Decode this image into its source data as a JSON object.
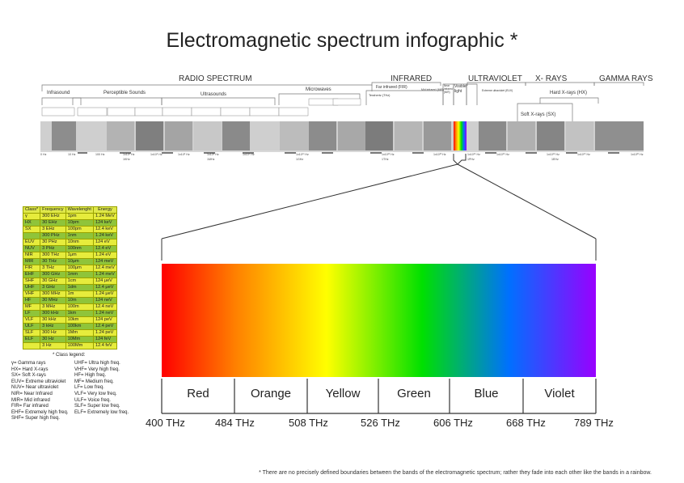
{
  "title": "Electromagnetic spectrum infographic *",
  "regions": [
    {
      "label": "RADIO SPECTRUM"
    },
    {
      "label": "INFRARED"
    },
    {
      "label": "ULTRAVIOLET"
    },
    {
      "label": "X- RAYS"
    },
    {
      "label": "GAMMA RAYS"
    }
  ],
  "subbands": {
    "infrasound": "Infrasound",
    "perceptible": "Perceptible Sounds",
    "ultrasounds": "Ultrasounds",
    "microwaves": "Microwaves",
    "far_infrared": "Far infrared (FIR)",
    "terahertz": "Terahertz (THz)",
    "mid_infrared": "Mid infrared (MIR)",
    "near_infrared": "Near infrared (NIR)",
    "visible_light": "Visible light",
    "extreme_uv": "Extreme ultraviolet (EUV)",
    "hard_xrays": "Hard X-rays (HX)",
    "soft_xrays": "Soft X-rays (SX)"
  },
  "axis_ticks": [
    "0 Hz",
    "10 Hz",
    "100 Hz",
    "1x10³ Hz",
    "1x10⁵ Hz",
    "1x10⁶ Hz",
    "1x10⁸ Hz",
    "1x10⁹ Hz",
    "1x10¹⁰ Hz",
    "1x10¹² Hz",
    "1x10¹³ Hz",
    "1x10¹⁵ Hz",
    "1x10¹⁶ Hz",
    "1x10¹⁸ Hz",
    "1x10¹⁹ Hz",
    "1x10²¹ Hz"
  ],
  "axis_units": [
    "1KHz",
    "1MHz",
    "1GHz",
    "1THz",
    "1PHz",
    "1EHz"
  ],
  "legend_table": {
    "headers": [
      "Class*",
      "Frequency",
      "Wavelenght",
      "Energy"
    ],
    "rows": [
      [
        "γ",
        "300 EHz",
        "1pm",
        "1.24 MeV"
      ],
      [
        "HX",
        "30 EHz",
        "10pm",
        "124 keV"
      ],
      [
        "SX",
        "3 EHz",
        "100pm",
        "12.4 keV"
      ],
      [
        "",
        "300 PHz",
        "1nm",
        "1.24 keV"
      ],
      [
        "EUV",
        "30 PHz",
        "10nm",
        "124 eV"
      ],
      [
        "NUV",
        "3 PHz",
        "100nm",
        "12.4 eV"
      ],
      [
        "NIR",
        "300 THz",
        "1μm",
        "1.24 eV"
      ],
      [
        "MIR",
        "30 THz",
        "10μm",
        "124 meV"
      ],
      [
        "FIR",
        "3 THz",
        "100μm",
        "12.4 meV"
      ],
      [
        "EHF",
        "300 GHz",
        "1mm",
        "1.24 meV"
      ],
      [
        "SHF",
        "30 GHz",
        "1cm",
        "124 μeV"
      ],
      [
        "UHF",
        "3 GHz",
        "1dm",
        "12.4 μeV"
      ],
      [
        "VHF",
        "300 MHz",
        "1m",
        "1.24 μeV"
      ],
      [
        "HF",
        "30 MHz",
        "10m",
        "124 neV"
      ],
      [
        "MF",
        "3 MHz",
        "100m",
        "12.4 neV"
      ],
      [
        "LF",
        "300 kHz",
        "1km",
        "1.24 neV"
      ],
      [
        "VLF",
        "30 kHz",
        "10km",
        "124 peV"
      ],
      [
        "ULF",
        "3 kHz",
        "100km",
        "12.4 peV"
      ],
      [
        "SLF",
        "300 Hz",
        "1Mm",
        "1.24 peV"
      ],
      [
        "ELF",
        "30 Hz",
        "10Mm",
        "124 feV"
      ],
      [
        "",
        "3 Hz",
        "100Mm",
        "12.4 feV"
      ]
    ]
  },
  "class_legend": {
    "title": "* Class legend:",
    "left": [
      "γ= Gamma rays",
      "HX= Hard X-rays",
      "SX= Soft X-rays",
      "EUV= Extreme ultraviolet",
      "NUV= Near ultraviolet",
      "NIR= Near Infrared",
      "MIR= Mid infrared",
      "FIR= Far infrared",
      "EHF= Extremely high freq.",
      "SHF= Super high freq."
    ],
    "right": [
      "UHF= Ultra high freq.",
      "VHF= Very high freq.",
      "HF= High freq.",
      "MF= Medium freq.",
      "LF= Low freq.",
      "VLF= Very low freq.",
      "ULF= Voice freq.",
      "SLF= Super low freq.",
      "ELF= Extremely low freq."
    ]
  },
  "visible": {
    "colors": [
      "Red",
      "Orange",
      "Yellow",
      "Green",
      "Blue",
      "Violet"
    ],
    "frequencies": [
      "400 THz",
      "484 THz",
      "508 THz",
      "526 THz",
      "606 THz",
      "668 THz",
      "789 THz"
    ],
    "gradient": [
      "#ff0000",
      "#ff8000",
      "#ffff00",
      "#00e000",
      "#0070ff",
      "#7000ff",
      "#9900ff"
    ]
  },
  "footnote": "* There are no precisely defined boundaries between the bands of the electromagnetic spectrum; rather they fade into each other like the bands in a rainbow."
}
